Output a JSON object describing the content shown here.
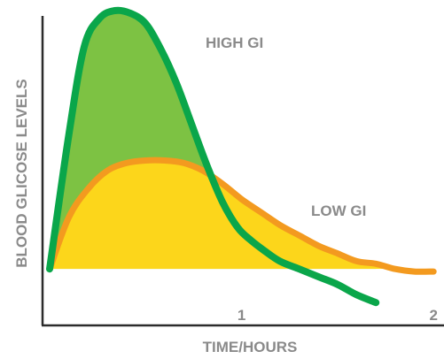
{
  "chart_data": {
    "type": "line",
    "title": "",
    "xlabel": "TIME/HOURS",
    "ylabel": "BLOOD GLICOSE LEVELS",
    "x_ticks": [
      {
        "value": 1,
        "label": "1"
      },
      {
        "value": 2,
        "label": "2"
      }
    ],
    "xlim": [
      0,
      2.05
    ],
    "ylim": [
      -0.15,
      1.0
    ],
    "grid": false,
    "baseline": 0,
    "colors": {
      "high_line": "#0aa64a",
      "high_fill": "#7dc243",
      "low_line": "#f39a1f",
      "low_fill": "#fcd61b",
      "axis": "#2b2b2b"
    },
    "series": [
      {
        "name": "HIGH GI",
        "x": [
          0.0,
          0.1,
          0.18,
          0.26,
          0.34,
          0.42,
          0.5,
          0.58,
          0.66,
          0.74,
          0.82,
          0.9,
          0.98,
          1.05,
          1.12,
          1.2,
          1.3,
          1.4,
          1.5,
          1.6,
          1.7
        ],
        "y": [
          0.0,
          0.52,
          0.86,
          0.97,
          1.0,
          0.99,
          0.95,
          0.85,
          0.72,
          0.56,
          0.4,
          0.26,
          0.16,
          0.11,
          0.07,
          0.03,
          0.0,
          -0.03,
          -0.06,
          -0.1,
          -0.13
        ]
      },
      {
        "name": "LOW GI",
        "x": [
          0.0,
          0.1,
          0.2,
          0.3,
          0.4,
          0.5,
          0.6,
          0.7,
          0.8,
          0.9,
          1.0,
          1.1,
          1.2,
          1.3,
          1.4,
          1.5,
          1.6,
          1.7,
          1.8,
          1.9,
          2.0
        ],
        "y": [
          0.0,
          0.2,
          0.31,
          0.38,
          0.41,
          0.42,
          0.42,
          0.41,
          0.38,
          0.33,
          0.27,
          0.22,
          0.17,
          0.13,
          0.09,
          0.06,
          0.03,
          0.02,
          0.0,
          -0.01,
          -0.01
        ]
      }
    ]
  }
}
